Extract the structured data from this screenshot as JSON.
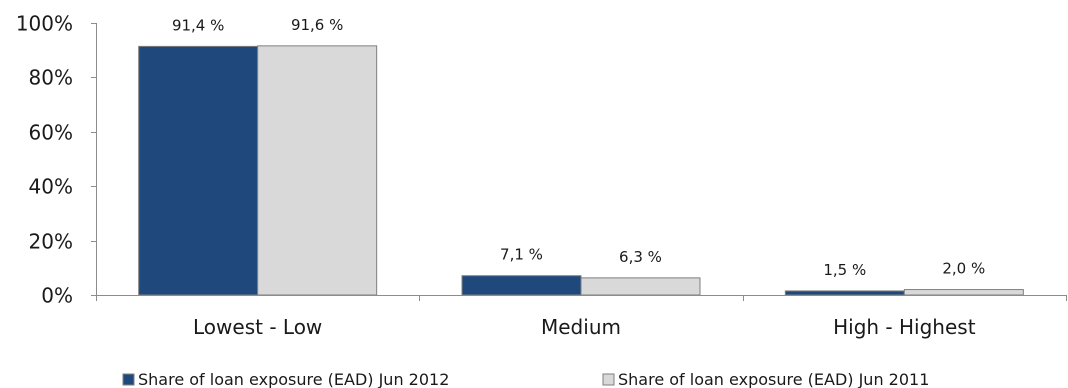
{
  "chart_data": {
    "type": "bar",
    "categories": [
      "Lowest - Low",
      "Medium",
      "High - Highest"
    ],
    "series": [
      {
        "name": "Share of loan exposure (EAD) Jun 2012",
        "values": [
          91.4,
          7.1,
          1.5
        ],
        "labels": [
          "91,4 %",
          "7,1 %",
          "1,5 %"
        ],
        "color": "#1f497d"
      },
      {
        "name": "Share of loan exposure (EAD) Jun 2011",
        "values": [
          91.6,
          6.3,
          2.0
        ],
        "labels": [
          "91,6 %",
          "6,3 %",
          "2,0 %"
        ],
        "color": "#d9d9d9"
      }
    ],
    "ylim": [
      0,
      100
    ],
    "yticks": [
      0,
      20,
      40,
      60,
      80,
      100
    ],
    "ytick_labels": [
      "0%",
      "20%",
      "40%",
      "60%",
      "80%",
      "100%"
    ],
    "grid": false,
    "legend_position": "bottom",
    "title": "",
    "xlabel": "",
    "ylabel": ""
  }
}
